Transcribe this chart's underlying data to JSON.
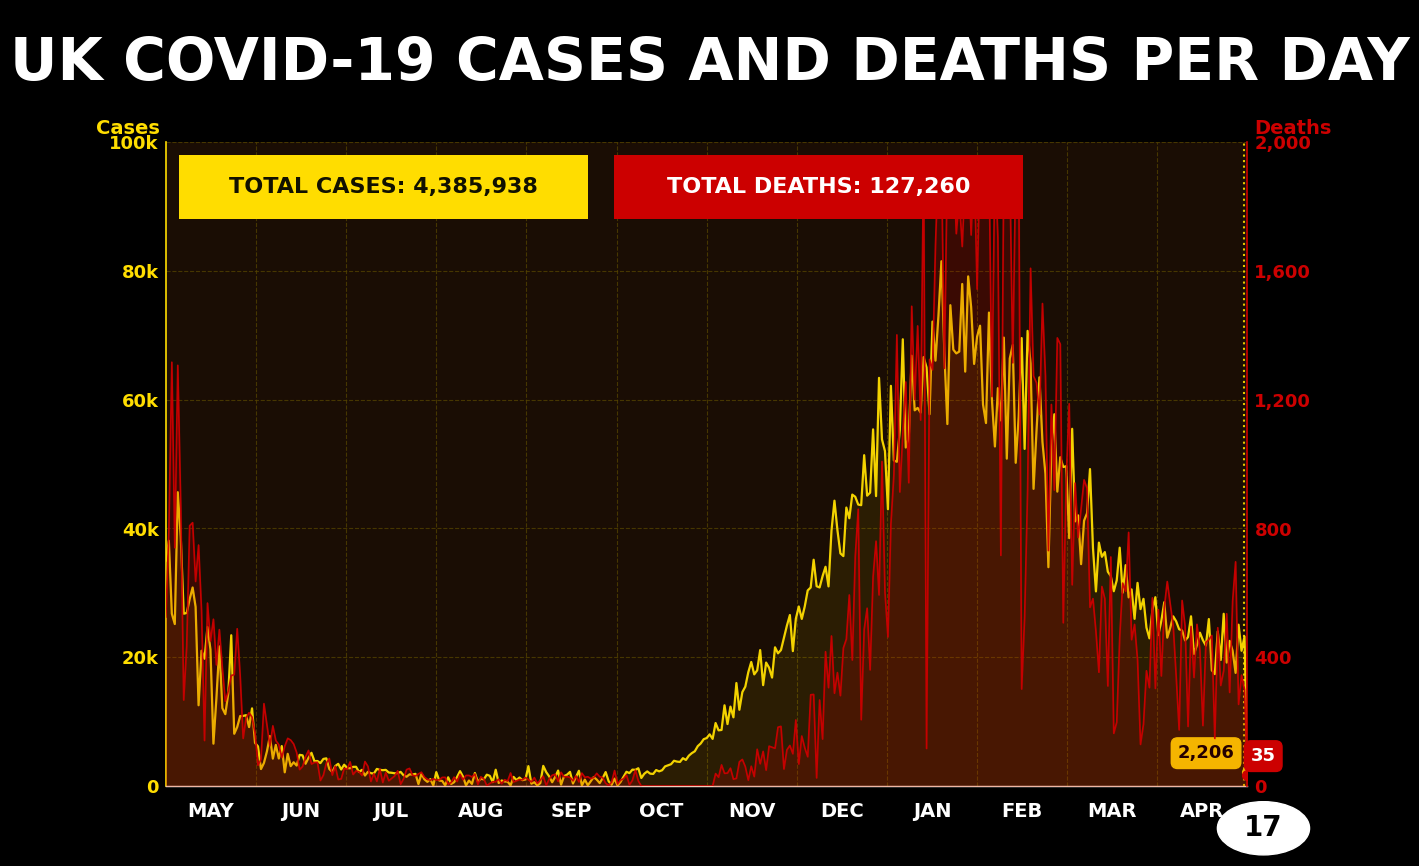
{
  "title": "UK COVID-19 CASES AND DEATHS PER DAY",
  "title_color": "#ffffff",
  "title_bg": "#000000",
  "plot_bg": "#1a0d04",
  "cases_color": "#ffdd00",
  "deaths_color": "#cc0000",
  "cases_label": "Cases",
  "deaths_label": "Deaths",
  "total_cases": "4,385,938",
  "total_deaths": "127,260",
  "last_cases": "2,206",
  "last_deaths": "35",
  "ylim_cases": [
    0,
    100000
  ],
  "ylim_deaths": [
    0,
    2000
  ],
  "yticks_cases": [
    0,
    20000,
    40000,
    60000,
    80000,
    100000
  ],
  "yticks_deaths": [
    0,
    400,
    800,
    1200,
    1600,
    2000
  ],
  "ytick_labels_cases": [
    "0",
    "20k",
    "40k",
    "60k",
    "80k",
    "100k"
  ],
  "ytick_labels_deaths": [
    "0",
    "400",
    "800",
    "1,200",
    "1,600",
    "2,000"
  ],
  "month_labels": [
    "MAY",
    "JUN",
    "JUL",
    "AUG",
    "SEP",
    "OCT",
    "NOV",
    "DEC",
    "JAN",
    "FEB",
    "MAR",
    "APR"
  ],
  "grid_color": "#554400",
  "dotted_line_color": "#ffdd00"
}
